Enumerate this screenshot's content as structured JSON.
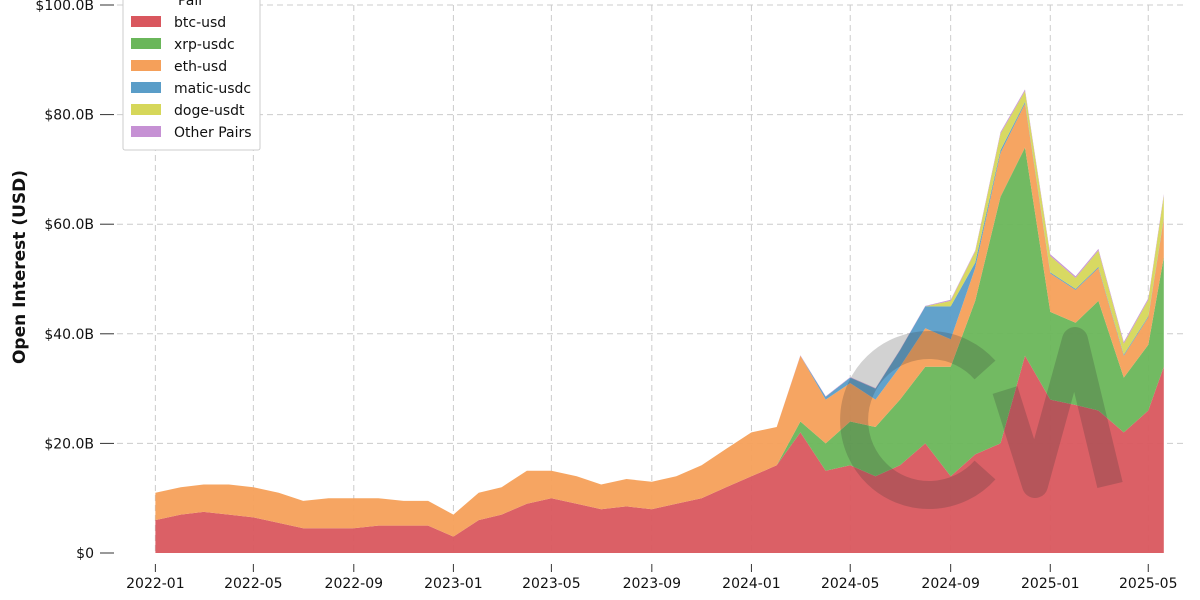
{
  "chart_data": {
    "type": "area",
    "stacked": true,
    "title": "",
    "xlabel": "",
    "ylabel": "Open Interest (USD)",
    "xlim": [
      "2021-11-15",
      "2025-06-15"
    ],
    "ylim": [
      0,
      100000000000
    ],
    "x_ticks": [
      "2022-01",
      "2022-05",
      "2022-09",
      "2023-01",
      "2023-05",
      "2023-09",
      "2024-01",
      "2024-05",
      "2024-09",
      "2025-01",
      "2025-05"
    ],
    "y_ticks": [
      {
        "value": 0,
        "label": "$0"
      },
      {
        "value": 20000000000,
        "label": "$20.0B"
      },
      {
        "value": 40000000000,
        "label": "$40.0B"
      },
      {
        "value": 60000000000,
        "label": "$60.0B"
      },
      {
        "value": 80000000000,
        "label": "$80.0B"
      },
      {
        "value": 100000000000,
        "label": "$100.0B"
      }
    ],
    "grid": true,
    "legend": {
      "title": "Pair",
      "placement": "top-left"
    },
    "value_unit": "billion USD",
    "x": [
      "2022-01-01",
      "2022-02-01",
      "2022-03-01",
      "2022-04-01",
      "2022-05-01",
      "2022-06-01",
      "2022-07-01",
      "2022-08-01",
      "2022-09-01",
      "2022-10-01",
      "2022-11-01",
      "2022-12-01",
      "2023-01-01",
      "2023-02-01",
      "2023-03-01",
      "2023-04-01",
      "2023-05-01",
      "2023-06-01",
      "2023-07-01",
      "2023-08-01",
      "2023-09-01",
      "2023-10-01",
      "2023-11-01",
      "2023-12-01",
      "2024-01-01",
      "2024-02-01",
      "2024-03-01",
      "2024-04-01",
      "2024-05-01",
      "2024-06-01",
      "2024-07-01",
      "2024-08-01",
      "2024-09-01",
      "2024-10-01",
      "2024-11-01",
      "2024-12-01",
      "2025-01-01",
      "2025-02-01",
      "2025-03-01",
      "2025-04-01",
      "2025-05-01",
      "2025-05-20"
    ],
    "series": [
      {
        "name": "btc-usd",
        "color": "#d9575e",
        "values": [
          6,
          7,
          7.5,
          7,
          6.5,
          5.5,
          4.5,
          4.5,
          4.5,
          5,
          5,
          5,
          3,
          6,
          7,
          9,
          10,
          9,
          8,
          8.5,
          8,
          9,
          10,
          12,
          14,
          16,
          22,
          15,
          16,
          14,
          16,
          20,
          14,
          18,
          20,
          36,
          28,
          27,
          26,
          22,
          26,
          34
        ]
      },
      {
        "name": "xrp-usdc",
        "color": "#6ab65a",
        "values": [
          0,
          0,
          0,
          0,
          0,
          0,
          0,
          0,
          0,
          0,
          0,
          0,
          0,
          0,
          0,
          0,
          0,
          0,
          0,
          0,
          0,
          0,
          0,
          0,
          0,
          0,
          2,
          5,
          8,
          9,
          12,
          14,
          20,
          28,
          45,
          38,
          16,
          15,
          20,
          10,
          12,
          20
        ]
      },
      {
        "name": "eth-usd",
        "color": "#f5a05a",
        "values": [
          5,
          5,
          5,
          5.5,
          5.5,
          5.5,
          5,
          5.5,
          5.5,
          5,
          4.5,
          4.5,
          4,
          5,
          5,
          6,
          5,
          5,
          4.5,
          5,
          5,
          5,
          6,
          7,
          8,
          7,
          12,
          8,
          7,
          5,
          6,
          7,
          5,
          6,
          8,
          8,
          7,
          6,
          6,
          4,
          5,
          7
        ]
      },
      {
        "name": "matic-usdc",
        "color": "#5a9dc8",
        "values": [
          0,
          0,
          0,
          0,
          0,
          0,
          0,
          0,
          0,
          0,
          0,
          0,
          0,
          0,
          0,
          0,
          0,
          0,
          0,
          0,
          0,
          0,
          0,
          0,
          0,
          0,
          0,
          0.5,
          1,
          2,
          3,
          4,
          6,
          1,
          0.5,
          0.3,
          0.2,
          0.2,
          0.2,
          0.2,
          0.2,
          0.2
        ]
      },
      {
        "name": "doge-usdt",
        "color": "#d6d75a",
        "values": [
          0,
          0,
          0,
          0,
          0,
          0,
          0,
          0,
          0,
          0,
          0,
          0,
          0,
          0,
          0,
          0,
          0,
          0,
          0,
          0,
          0,
          0,
          0,
          0,
          0,
          0,
          0,
          0,
          0,
          0,
          0,
          0,
          1,
          2,
          3,
          2,
          3,
          2,
          3,
          2,
          3,
          4
        ]
      },
      {
        "name": "Other Pairs",
        "color": "#c691d4",
        "values": [
          0,
          0,
          0,
          0,
          0,
          0,
          0,
          0,
          0,
          0,
          0,
          0,
          0,
          0,
          0,
          0,
          0,
          0,
          0,
          0,
          0,
          0,
          0,
          0,
          0,
          0,
          0.1,
          0.1,
          0.1,
          0.1,
          0.1,
          0.1,
          0.2,
          0.2,
          0.3,
          0.3,
          0.3,
          0.3,
          0.3,
          0.3,
          0.3,
          0.3
        ]
      }
    ]
  }
}
